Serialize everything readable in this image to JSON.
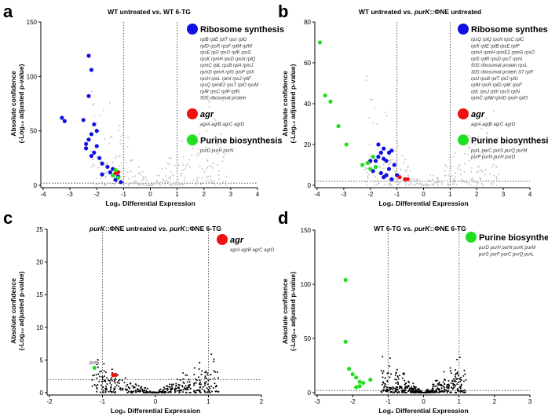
{
  "colors": {
    "ribosome": "#1010e0",
    "agr": "#f01010",
    "purine": "#20e020",
    "other_gray": "#c8c8c8",
    "other_black": "#000000"
  },
  "chart_data": [
    {
      "panel": "a",
      "type": "scatter",
      "title": "WT untreated vs. WT 6-TG",
      "xlabel": "Log₂ Differential Expression",
      "ylabel": [
        "Absolute confidence",
        "(-Log₁₀ adjusted p-value)"
      ],
      "xlim": [
        -4,
        4
      ],
      "ylim": [
        0,
        150
      ],
      "xticks": [
        -4,
        -3,
        -2,
        -1,
        0,
        1,
        2,
        3,
        4
      ],
      "yticks": [
        0,
        50,
        100,
        150
      ],
      "thresholds": {
        "x": [
          -1,
          1
        ],
        "y": 2
      },
      "background": "gray",
      "legend": [
        {
          "name": "Ribosome synthesis",
          "color_key": "ribosome",
          "genes": [
            "rplB rplE rplT rpsI rplU",
            "rplD rpsR rpsF rplM rplW",
            "rpsE rplJ rpsO rplK rpsS",
            "rpsK rpmH rpsD rpsN rplQ",
            "rpmC rplL rpsB rplA rpmJ",
            "rpmD rpmA rplS rpsP rplX",
            "rpsH rpsL rpmI rpsJ rplF",
            "rpsQ rpmE2 rpsT rplO rpsM",
            "rplR rpsC rplP rplN",
            "50S ribosomal protein"
          ]
        },
        {
          "name": "agr",
          "color_key": "agr",
          "italic": true,
          "genes": [
            "agrA agrB agrC agrD"
          ]
        },
        {
          "name": "Purine biosynthesis",
          "color_key": "purine",
          "genes": [
            "purD purH purN"
          ]
        }
      ],
      "series": [
        {
          "name": "Ribosome synthesis",
          "color_key": "ribosome",
          "points": [
            [
              -3.3,
              62
            ],
            [
              -3.2,
              59
            ],
            [
              -2.3,
              119
            ],
            [
              -2.3,
              82
            ],
            [
              -2.2,
              106
            ],
            [
              -2.5,
              60
            ],
            [
              -2.1,
              56
            ],
            [
              -2.0,
              50
            ],
            [
              -2.2,
              47
            ],
            [
              -2.3,
              42
            ],
            [
              -2.4,
              38
            ],
            [
              -2.0,
              36
            ],
            [
              -2.1,
              30
            ],
            [
              -1.9,
              25
            ],
            [
              -1.8,
              20
            ],
            [
              -1.6,
              17
            ],
            [
              -1.4,
              15
            ],
            [
              -1.5,
              12
            ],
            [
              -1.2,
              8
            ],
            [
              -1.3,
              5
            ],
            [
              -1.8,
              10
            ],
            [
              -2.4,
              34
            ],
            [
              -1.1,
              3
            ],
            [
              -2.2,
              27
            ]
          ]
        },
        {
          "name": "agr",
          "color_key": "agr",
          "points": [
            [
              -1.2,
              12
            ],
            [
              -1.3,
              11
            ]
          ]
        },
        {
          "name": "Purine biosynthesis",
          "color_key": "purine",
          "points": [
            [
              -1.3,
              14
            ],
            [
              -1.4,
              9
            ],
            [
              -1.2,
              7
            ]
          ]
        }
      ]
    },
    {
      "panel": "b",
      "type": "scatter",
      "title_parts": [
        "WT untreated vs. ",
        "purK",
        "::ΦNE untreated"
      ],
      "xlabel": "Log₂ Differential Expression",
      "ylabel": [
        "Absolute confidence",
        "(-Log₁₀ adjusted p-value)"
      ],
      "xlim": [
        -4,
        4
      ],
      "ylim": [
        0,
        80
      ],
      "xticks": [
        -4,
        -3,
        -2,
        -1,
        0,
        1,
        2,
        3,
        4
      ],
      "yticks": [
        0,
        20,
        40,
        60,
        80
      ],
      "thresholds": {
        "x": [
          -1,
          1
        ],
        "y": 2
      },
      "background": "gray",
      "legend": [
        {
          "name": "Ribosome synthesis",
          "color_key": "ribosome",
          "genes": [
            "rpsQ rplQ rpsN rpsC rplC",
            "rplX rplE rplB rpsE rplP",
            "rpmA rpmH rpmE2 rpmG rpsO",
            "rplS rplR rpsD rpsT rpmI",
            "50S ribosomal protein rpsL",
            "30S ribosomal protein S7 rplF",
            "rpsI rpsB rplT rplJ rplU",
            "rplM rpsR rplD rplK rpsF",
            "rplL rpsJ rplV rpsS rplN",
            "rpmC rplW rpmD rpsH rplO"
          ]
        },
        {
          "name": "agr",
          "color_key": "agr",
          "italic": true,
          "genes": [
            "agrA agrB agrC agrD"
          ]
        },
        {
          "name": "Purine biosynthesis",
          "color_key": "purine",
          "genes": [
            "purL purC purS purQ purM",
            "purF purN purH purD"
          ]
        }
      ],
      "series": [
        {
          "name": "Ribosome synthesis",
          "color_key": "ribosome",
          "points": [
            [
              -1.8,
              12
            ],
            [
              -1.7,
              14
            ],
            [
              -1.6,
              16
            ],
            [
              -1.5,
              13
            ],
            [
              -1.4,
              12
            ],
            [
              -1.3,
              16
            ],
            [
              -1.2,
              17
            ],
            [
              -1.5,
              18
            ],
            [
              -1.9,
              7
            ],
            [
              -1.6,
              6
            ],
            [
              -1.5,
              4
            ],
            [
              -1.4,
              5
            ],
            [
              -1.2,
              3
            ],
            [
              -1.1,
              10
            ],
            [
              -1.0,
              5
            ],
            [
              -1.7,
              20
            ],
            [
              -1.8,
              9
            ],
            [
              -2.0,
              12
            ],
            [
              -1.3,
              8
            ]
          ]
        },
        {
          "name": "agr",
          "color_key": "agr",
          "points": [
            [
              -0.9,
              4
            ],
            [
              -0.7,
              3
            ],
            [
              -0.6,
              3
            ]
          ]
        },
        {
          "name": "Purine biosynthesis",
          "color_key": "purine",
          "points": [
            [
              -3.9,
              70
            ],
            [
              -3.7,
              44
            ],
            [
              -3.5,
              41
            ],
            [
              -3.2,
              29
            ],
            [
              -2.9,
              20
            ],
            [
              -2.3,
              10
            ],
            [
              -2.1,
              11
            ],
            [
              -1.8,
              9
            ],
            [
              -1.9,
              14
            ],
            [
              -2.0,
              8
            ]
          ]
        }
      ]
    },
    {
      "panel": "c",
      "type": "scatter",
      "title_parts": [
        "purK",
        "::ΦNE untreated vs. ",
        "purK",
        "::ΦNE 6-TG"
      ],
      "xlabel": "Log₂ Differential Expression",
      "ylabel": [
        "Absolute confidence",
        "(-Log₁₀ adjusted p-value)"
      ],
      "xlim": [
        -2,
        2
      ],
      "ylim": [
        0,
        25
      ],
      "xticks": [
        -2,
        -1,
        0,
        1,
        2
      ],
      "yticks": [
        0,
        5,
        10,
        15,
        20,
        25
      ],
      "thresholds": {
        "x": [
          -1,
          1
        ],
        "y": 2
      },
      "background": "black",
      "legend": [
        {
          "name": "agr",
          "color_key": "agr",
          "italic": true,
          "genes": [
            "agrA agrB agrC agrD"
          ]
        }
      ],
      "annotations": [
        {
          "text": "purE",
          "x": -1.15,
          "y": 3.8
        }
      ],
      "series": [
        {
          "name": "agr",
          "color_key": "agr",
          "points": [
            [
              -0.8,
              2.7
            ],
            [
              -0.75,
              2.7
            ]
          ]
        },
        {
          "name": "purE",
          "color_key": "purine",
          "points": [
            [
              -1.15,
              3.8
            ]
          ]
        }
      ]
    },
    {
      "panel": "d",
      "type": "scatter",
      "title_parts": [
        "WT 6-TG vs. ",
        "purK",
        "::ΦNE 6-TG"
      ],
      "xlabel": "Log₂ Differential Expression",
      "ylabel": [
        "Absolute confidence",
        "(-Log₁₀ adjusted p-value)"
      ],
      "xlim": [
        -3,
        3
      ],
      "ylim": [
        0,
        150
      ],
      "xticks": [
        -3,
        -2,
        -1,
        0,
        1,
        2,
        3
      ],
      "yticks": [
        0,
        50,
        100,
        150
      ],
      "thresholds": {
        "x": [
          -1,
          1
        ],
        "y": 2
      },
      "background": "black",
      "legend": [
        {
          "name": "Purine biosynthesis",
          "color_key": "purine",
          "genes": [
            "purD purH purN purK purM",
            "purS purF purC purQ purL"
          ]
        }
      ],
      "series": [
        {
          "name": "Purine biosynthesis",
          "color_key": "purine",
          "points": [
            [
              -2.2,
              104
            ],
            [
              -2.2,
              47
            ],
            [
              -2.1,
              22
            ],
            [
              -2.0,
              17
            ],
            [
              -1.9,
              14
            ],
            [
              -1.8,
              10
            ],
            [
              -1.7,
              9
            ],
            [
              -1.5,
              12
            ],
            [
              -1.8,
              6
            ],
            [
              -1.9,
              5
            ]
          ]
        }
      ]
    }
  ]
}
